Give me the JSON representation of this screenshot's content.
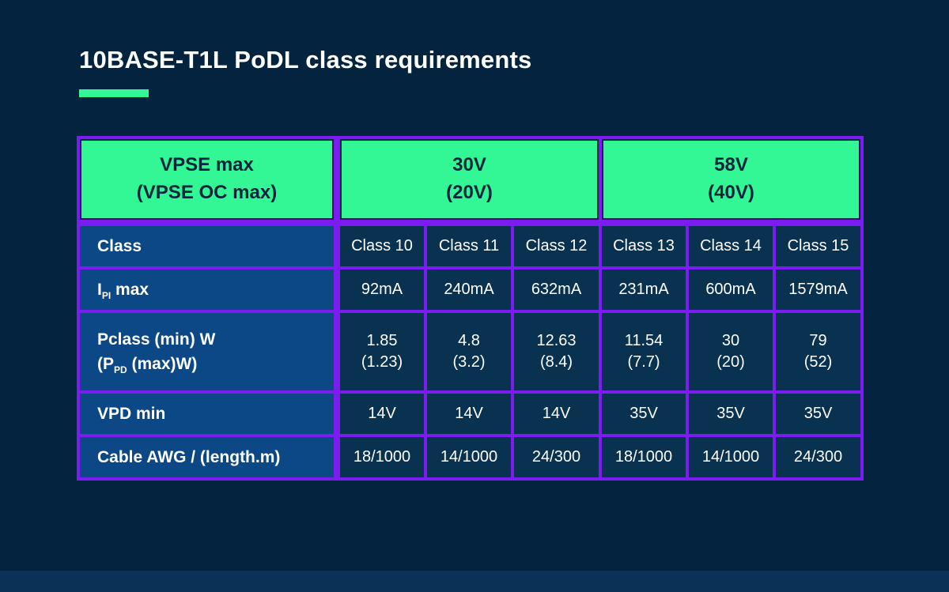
{
  "page": {
    "title": "10BASE-T1L PoDL class requirements"
  },
  "colors": {
    "background": "#03233E",
    "accent_green": "#33F795",
    "border_purple": "#7B1CF0",
    "label_cell_blue": "#0B4885",
    "data_cell_navy": "#093150",
    "footer_strip_blue": "#0B3256",
    "header_text_navy": "#06243D",
    "text_white": "#FFFFFF"
  },
  "table": {
    "header": {
      "vpse": {
        "line1": "VPSE max",
        "line2": "(VPSE OC max)"
      },
      "group_30v": {
        "line1": "30V",
        "line2": "(20V)"
      },
      "group_58v": {
        "line1": "58V",
        "line2": "(40V)"
      }
    },
    "rows": {
      "class": {
        "label": "Class",
        "values": [
          "Class 10",
          "Class 11",
          "Class 12",
          "Class 13",
          "Class 14",
          "Class 15"
        ]
      },
      "ipi": {
        "label_pre": "I",
        "label_sub": "PI",
        "label_post": " max",
        "values": [
          "92mA",
          "240mA",
          "632mA",
          "231mA",
          "600mA",
          "1579mA"
        ]
      },
      "pclass": {
        "label_line1": "Pclass (min) W",
        "label2_pre": "(P",
        "label2_sub": "PD",
        "label2_post": " (max)W)",
        "values": [
          {
            "v": "1.85",
            "p": "(1.23)"
          },
          {
            "v": "4.8",
            "p": "(3.2)"
          },
          {
            "v": "12.63",
            "p": "(8.4)"
          },
          {
            "v": "11.54",
            "p": "(7.7)"
          },
          {
            "v": "30",
            "p": "(20)"
          },
          {
            "v": "79",
            "p": "(52)"
          }
        ]
      },
      "vpd": {
        "label": "VPD min",
        "values": [
          "14V",
          "14V",
          "14V",
          "35V",
          "35V",
          "35V"
        ]
      },
      "cable": {
        "label": "Cable AWG / (length.m)",
        "values": [
          "18/1000",
          "14/1000",
          "24/300",
          "18/1000",
          "14/1000",
          "24/300"
        ]
      }
    }
  }
}
